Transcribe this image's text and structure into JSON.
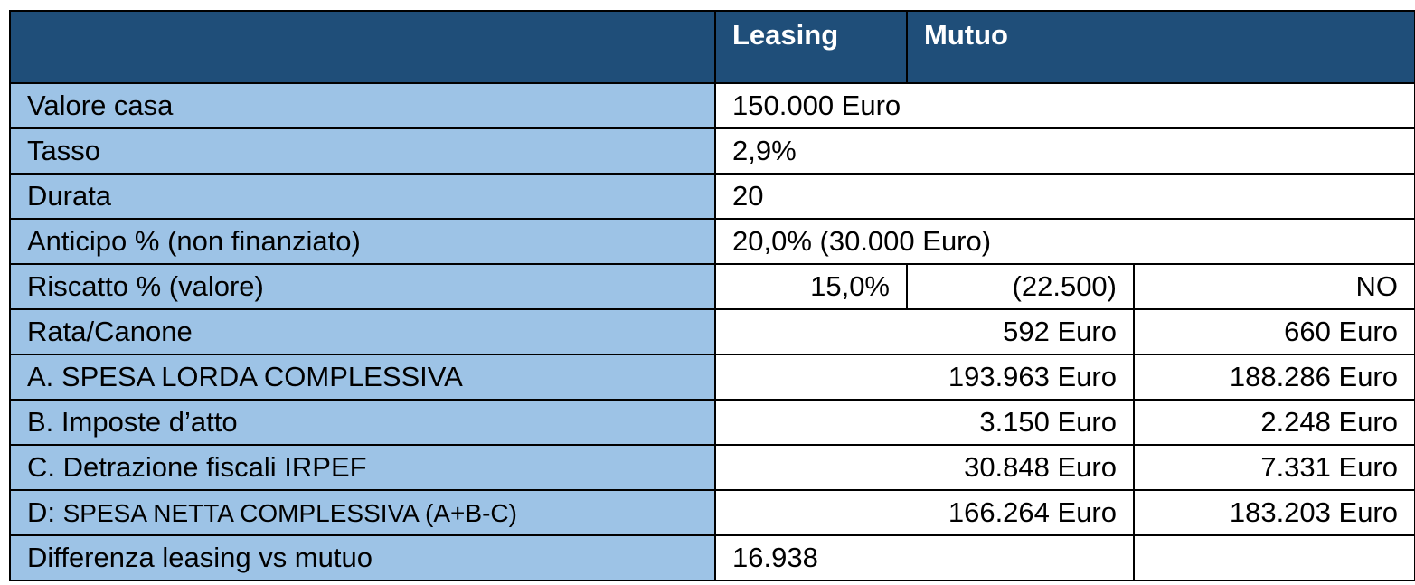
{
  "header": {
    "leasing": "Leasing",
    "mutuo": "Mutuo"
  },
  "rows": {
    "valore_casa": {
      "label": "Valore casa",
      "value": "150.000 Euro"
    },
    "tasso": {
      "label": "Tasso",
      "value": "2,9%"
    },
    "durata": {
      "label": "Durata",
      "value": "20"
    },
    "anticipo": {
      "label": "Anticipo % (non finanziato)",
      "value": "20,0% (30.000 Euro)"
    },
    "riscatto": {
      "label": "Riscatto % (valore)",
      "leasing_pct": "15,0%",
      "leasing_val": "(22.500)",
      "mutuo": "NO"
    },
    "rata": {
      "label": "Rata/Canone",
      "leasing": "592 Euro",
      "mutuo": "660 Euro"
    },
    "spesa_lorda": {
      "label": "A. SPESA LORDA COMPLESSIVA",
      "leasing": "193.963 Euro",
      "mutuo": "188.286 Euro"
    },
    "imposte": {
      "label": "B. Imposte d’atto",
      "leasing": "3.150 Euro",
      "mutuo": "2.248 Euro"
    },
    "detrazione": {
      "label": "C. Detrazione fiscali IRPEF",
      "leasing": "30.848 Euro",
      "mutuo": "7.331 Euro"
    },
    "spesa_netta": {
      "label_prefix": "D:",
      "label_rest": "SPESA NETTA COMPLESSIVA (A+B-C)",
      "leasing": "166.264 Euro",
      "mutuo": "183.203 Euro"
    },
    "differenza": {
      "label": "Differenza leasing vs mutuo",
      "value": "16.938"
    }
  }
}
